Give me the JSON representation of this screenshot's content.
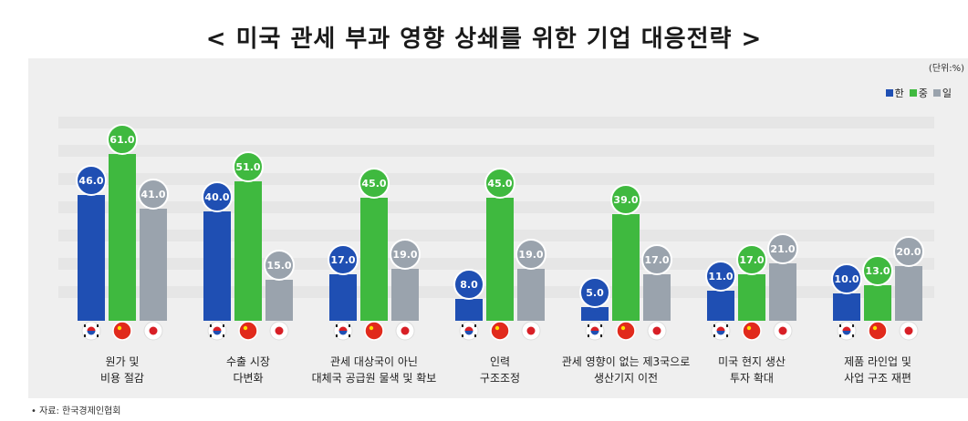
{
  "title": "< 미국 관세 부과 영향 상쇄를 위한 기업 대응전략 >",
  "unit": "(단위:%)",
  "source": "• 자료: 한국경제인협회",
  "colors": {
    "korea": "#1f4fb3",
    "china": "#3fb93f",
    "japan": "#9aa3ad"
  },
  "chart_data": {
    "type": "bar",
    "title": "< 미국 관세 부과 영향 상쇄를 위한 기업 대응전략 >",
    "unit": "(단위:%)",
    "categories": [
      "원가 및\n비용 절감",
      "수출 시장\n다변화",
      "관세 대상국이 아닌\n대체국 공급원 물색 및 확보",
      "인력\n구조조정",
      "관세 영향이 없는 제3국으로\n생산기지 이전",
      "미국 현지 생산\n투자 확대",
      "제품 라인업 및\n사업 구조 재편"
    ],
    "series": [
      {
        "name": "한",
        "values": [
          46.0,
          40.0,
          17.0,
          8.0,
          5.0,
          11.0,
          10.0
        ]
      },
      {
        "name": "중",
        "values": [
          61.0,
          51.0,
          45.0,
          45.0,
          39.0,
          17.0,
          13.0
        ]
      },
      {
        "name": "일",
        "values": [
          41.0,
          15.0,
          19.0,
          19.0,
          17.0,
          21.0,
          20.0
        ]
      }
    ],
    "ylim": [
      0,
      70
    ],
    "legend_position": "top-right",
    "grid": true
  }
}
